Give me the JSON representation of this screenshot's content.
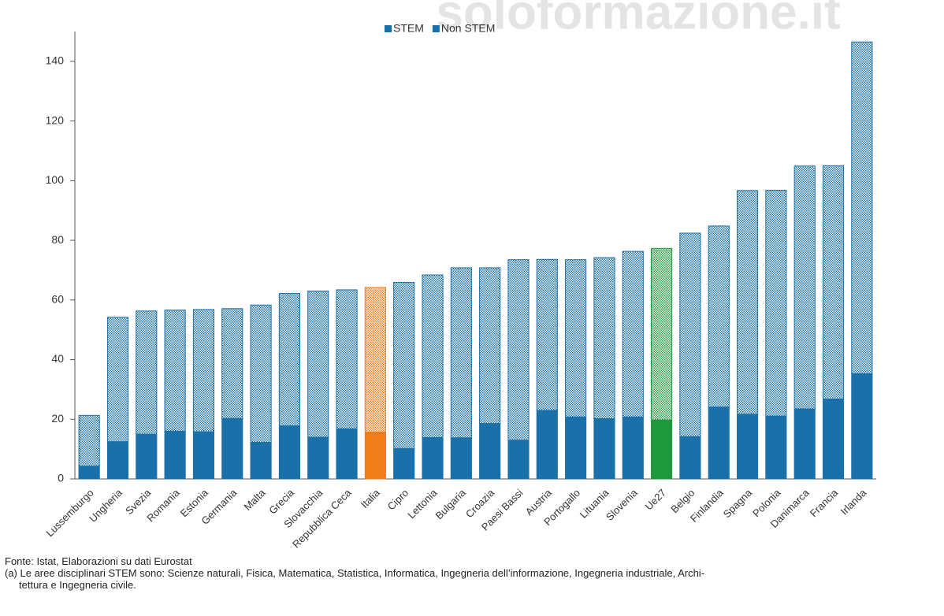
{
  "chart_data": {
    "type": "stacked_bar",
    "watermark": "soloformazione.it",
    "categories": [
      "Lussemburgo",
      "Ungheria",
      "Svezia",
      "Romania",
      "Estonia",
      "Germania",
      "Malta",
      "Grecia",
      "Slovacchia",
      "Repubblica Ceca",
      "Italia",
      "Cipro",
      "Lettonia",
      "Bulgaria",
      "Croazia",
      "Paesi Bassi",
      "Austria",
      "Portogallo",
      "Lituania",
      "Slovenia",
      "Ue27",
      "Belgio",
      "Finlandia",
      "Spagna",
      "Polonia",
      "Danimarca",
      "Francia",
      "Irlanda"
    ],
    "category_colors": [
      "#1a70a8",
      "#1a70a8",
      "#1a70a8",
      "#1a70a8",
      "#1a70a8",
      "#1a70a8",
      "#1a70a8",
      "#1a70a8",
      "#1a70a8",
      "#1a70a8",
      "#f07d1a",
      "#1a70a8",
      "#1a70a8",
      "#1a70a8",
      "#1a70a8",
      "#1a70a8",
      "#1a70a8",
      "#1a70a8",
      "#1a70a8",
      "#1a70a8",
      "#1e9a3c",
      "#1a70a8",
      "#1a70a8",
      "#1a70a8",
      "#1a70a8",
      "#1a70a8",
      "#1a70a8",
      "#1a70a8"
    ],
    "series": [
      {
        "name": "STEM",
        "color": "#1a70a8",
        "pattern": "solid",
        "values": [
          4.3,
          12.5,
          15,
          16,
          15.8,
          20.3,
          12.3,
          17.8,
          14,
          16.8,
          15.7,
          10.2,
          13.9,
          13.8,
          18.6,
          13,
          23,
          20.8,
          20.2,
          20.8,
          19.8,
          14.2,
          24.1,
          21.7,
          21.1,
          23.5,
          26.8,
          35.3
        ]
      },
      {
        "name": "Non STEM",
        "color": "#1a70a8",
        "pattern": "hatched",
        "values": [
          17.0,
          41.7,
          41.3,
          40.6,
          41.0,
          36.8,
          46.0,
          44.4,
          49.0,
          46.6,
          48.5,
          55.7,
          54.5,
          57.0,
          52.2,
          60.5,
          50.6,
          52.7,
          54.0,
          55.5,
          57.5,
          68.2,
          60.7,
          75.0,
          75.7,
          81.4,
          78.2,
          111.2
        ]
      }
    ],
    "ylim": [
      0,
      150
    ],
    "yticks": [
      0,
      20,
      40,
      60,
      80,
      100,
      120,
      140
    ],
    "grid": false,
    "legend": "top",
    "notes": [
      "Fonte: Istat, Elaborazioni su dati Eurostat",
      "(a) Le aree disciplinari STEM sono: Scienze naturali, Fisica, Matematica, Statistica, Informatica, Ingegneria dell’informazione, Ingegneria industriale, Archi-",
      "tettura e Ingegneria civile."
    ]
  }
}
